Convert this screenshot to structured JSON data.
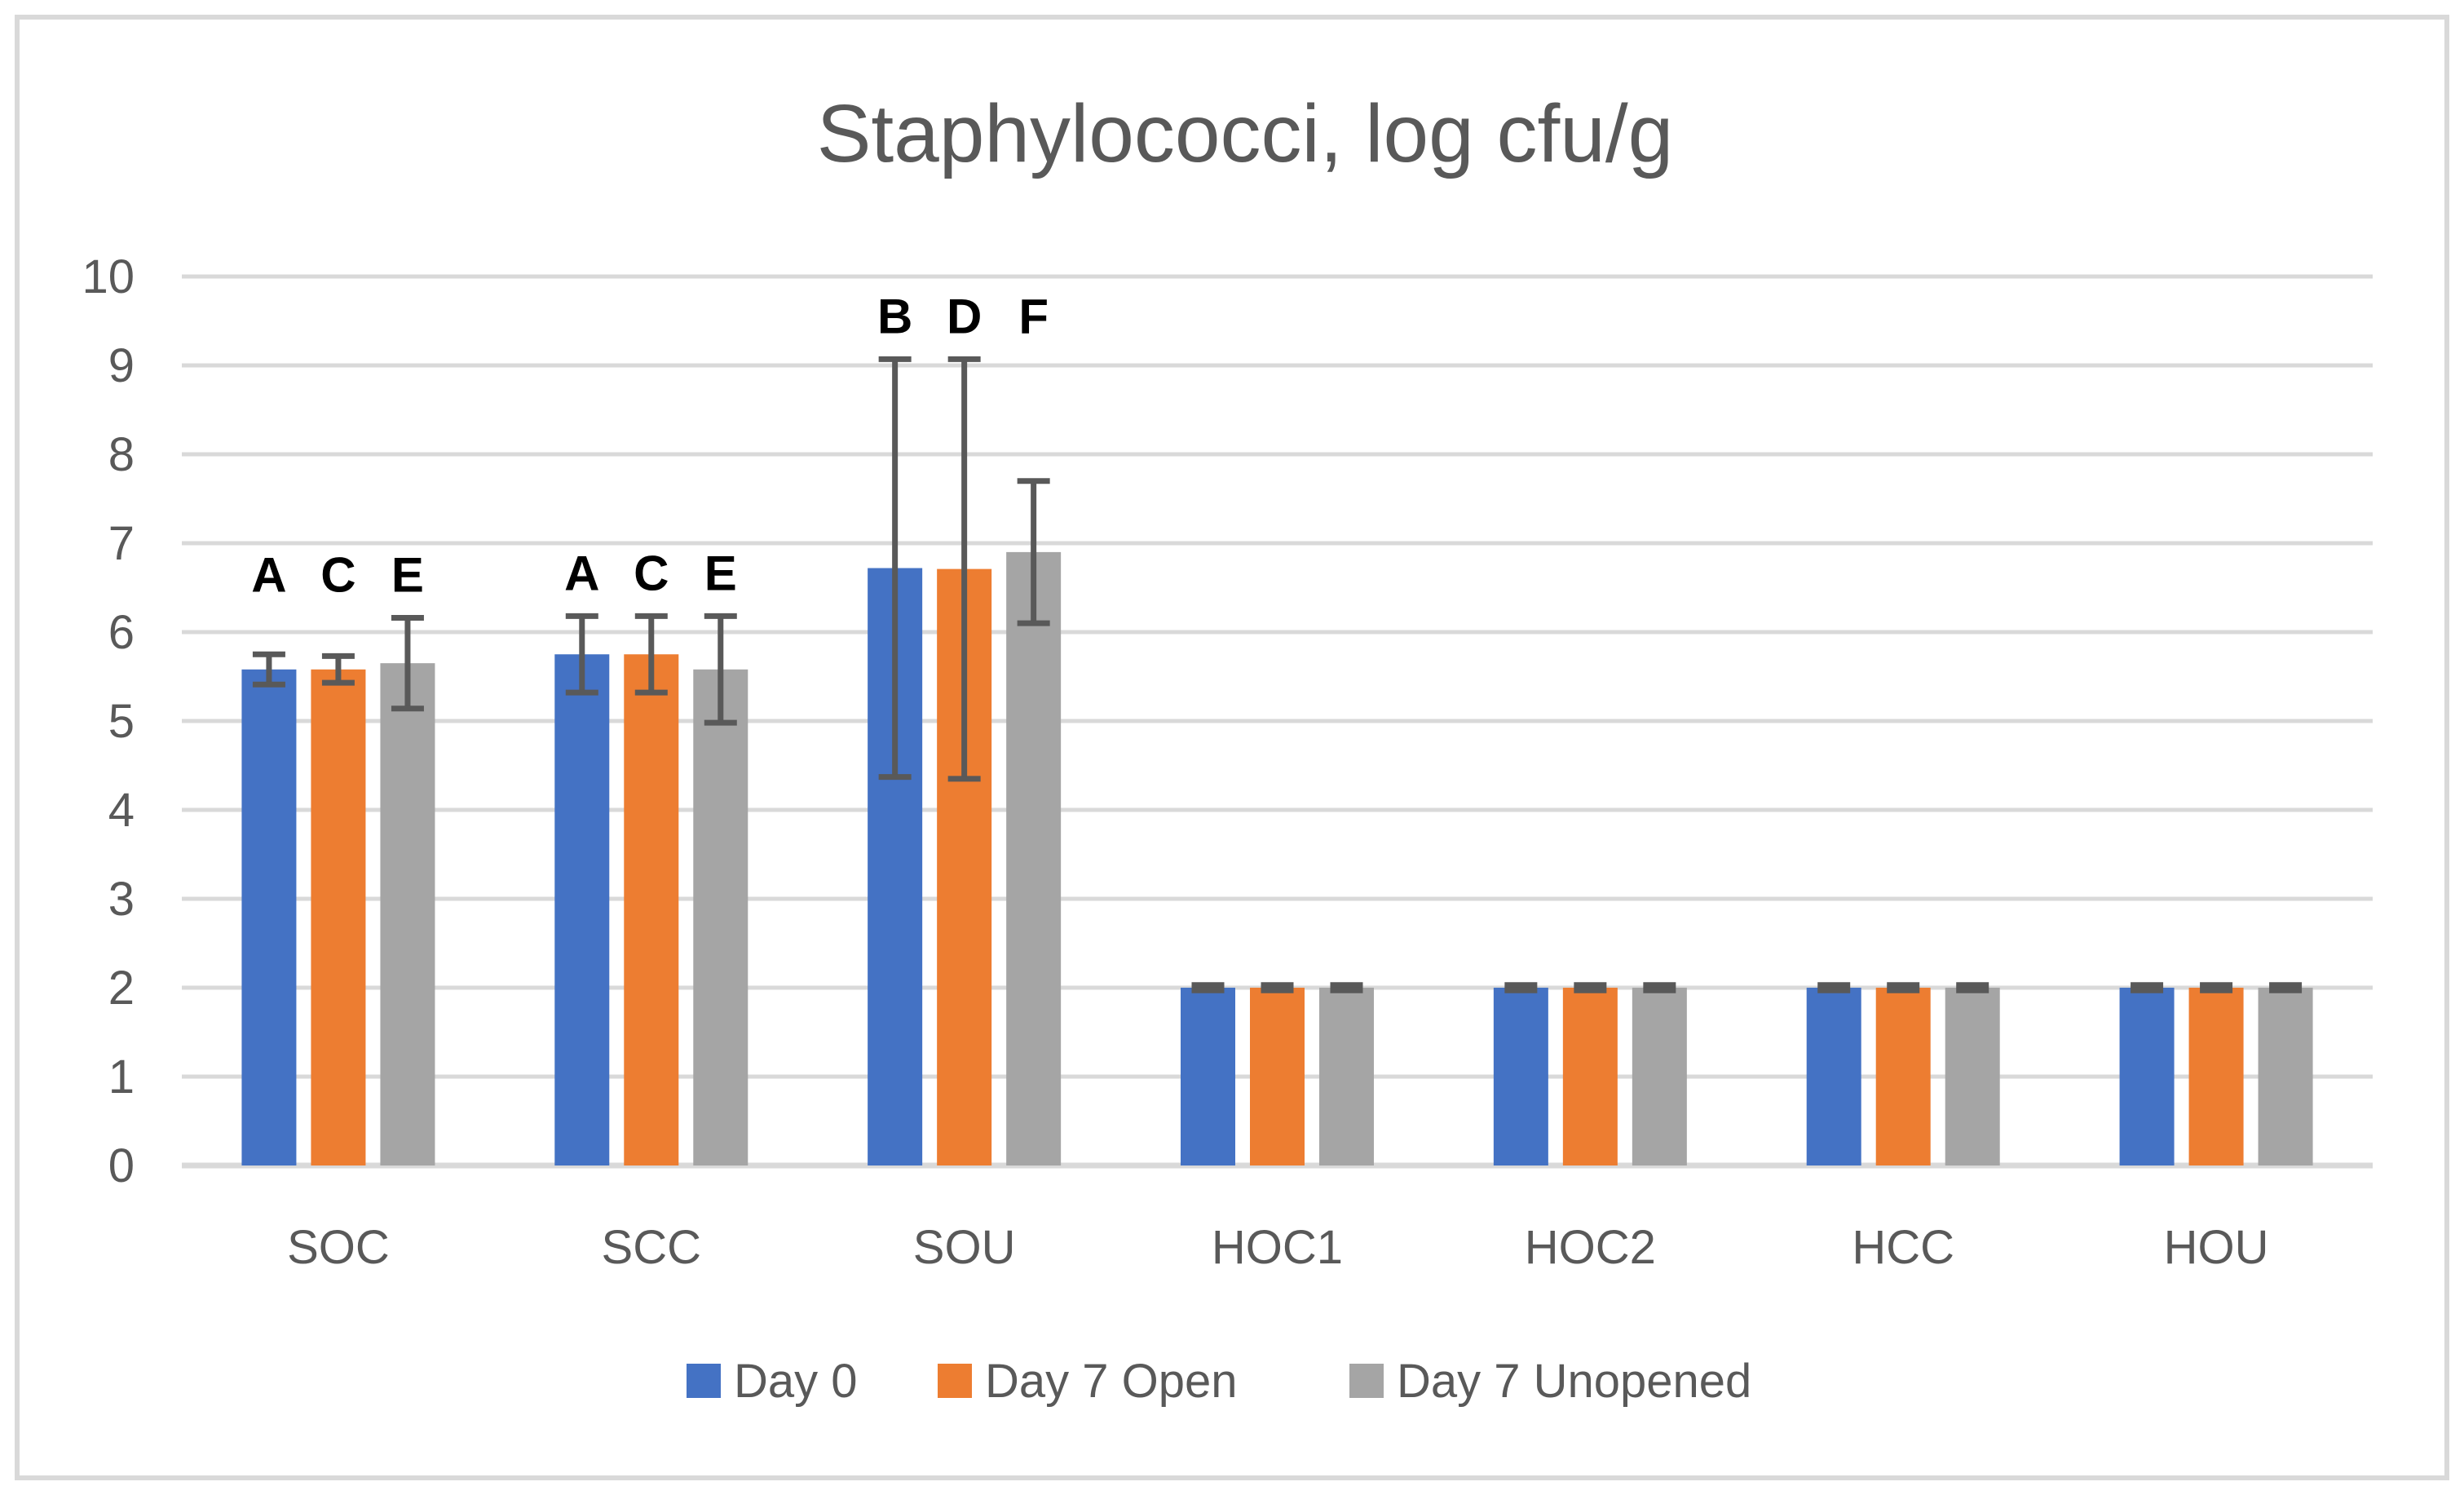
{
  "title": "Staphylococci, log cfu/g",
  "chart_data": {
    "type": "bar",
    "title": "Staphylococci, log cfu/g",
    "xlabel": "",
    "ylabel": "",
    "categories": [
      "SOC",
      "SCC",
      "SOU",
      "HOC1",
      "HOC2",
      "HCC",
      "HOU"
    ],
    "series": [
      {
        "name": "Day 0",
        "color": "#4472C4",
        "values": [
          5.58,
          5.75,
          6.72,
          2.0,
          2.0,
          2.0,
          2.0
        ],
        "errors": [
          0.17,
          0.43,
          2.35,
          0.03,
          0.03,
          0.03,
          0.03
        ]
      },
      {
        "name": "Day 7 Open",
        "color": "#ED7D31",
        "values": [
          5.58,
          5.75,
          6.71,
          2.0,
          2.0,
          2.0,
          2.0
        ],
        "errors": [
          0.15,
          0.43,
          2.36,
          0.03,
          0.03,
          0.03,
          0.03
        ]
      },
      {
        "name": "Day 7 Unopened",
        "color": "#A5A5A5",
        "values": [
          5.65,
          5.58,
          6.9,
          2.0,
          2.0,
          2.0,
          2.0
        ],
        "errors": [
          0.51,
          0.6,
          0.8,
          0.03,
          0.03,
          0.03,
          0.03
        ]
      }
    ],
    "annotations": [
      {
        "category": "SOC",
        "letters": [
          "A",
          "C",
          "E"
        ]
      },
      {
        "category": "SCC",
        "letters": [
          "A",
          "C",
          "E"
        ]
      },
      {
        "category": "SOU",
        "letters": [
          "B",
          "D",
          "F"
        ]
      }
    ],
    "ylim": [
      0,
      10
    ],
    "yticks": [
      0,
      1,
      2,
      3,
      4,
      5,
      6,
      7,
      8,
      9,
      10
    ],
    "grid": true,
    "legend_position": "bottom"
  },
  "colors": {
    "grid": "#D9D9D9",
    "border": "#D9D9D9",
    "axis_text": "#595959",
    "error_bar": "#595959",
    "annotation": "#000000",
    "background": "#FFFFFF"
  }
}
